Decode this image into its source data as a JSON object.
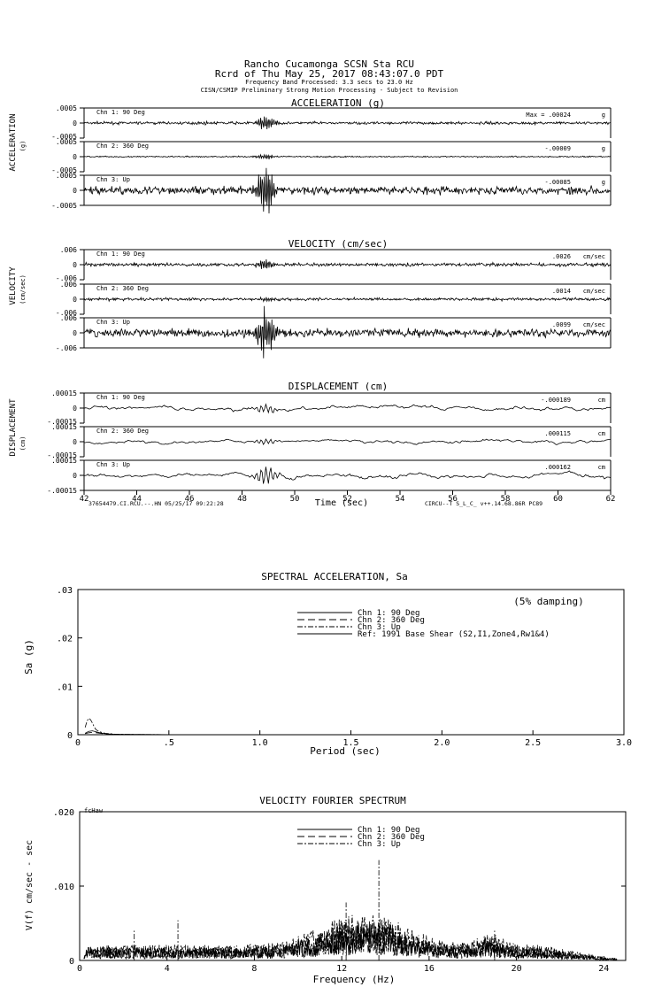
{
  "header": {
    "line1": "Rancho Cucamonga     SCSN Sta RCU",
    "line2": "Rcrd of Thu May 25, 2017 08:43:07.0 PDT",
    "line3": "Frequency Band Processed: 3.3 secs to 23.0 Hz",
    "line4": "CISN/CSMIP Preliminary Strong Motion Processing - Subject to Revision"
  },
  "time_axis": {
    "ticks": [
      "42",
      "44",
      "46",
      "48",
      "50",
      "52",
      "54",
      "56",
      "58",
      "60",
      "62"
    ],
    "label": "Time (sec)",
    "footer_left": "37654479.CI.RCU.--.HN 05/25/17 09:22:28",
    "footer_right": "CIRCU--T  S_L_C_  v++.14.68.86R PC89"
  },
  "chart_data": [
    {
      "type": "line",
      "title": "ACCELERATION (g)",
      "ylabel": "ACCELERATION",
      "yunit": "(g)",
      "xlim": [
        42,
        62
      ],
      "channels": [
        {
          "label": "Chn 1: 90 Deg",
          "max_text": "Max =   .00024",
          "unit": "g",
          "ytop": ".0005",
          "yzero": "0",
          "ybot": "-.0005",
          "peak": 0.00024,
          "burst_amp": 0.00024,
          "noise_amp": 4e-05
        },
        {
          "label": "Chn 2: 360 Deg",
          "max_text": "-.00009",
          "unit": "g",
          "ytop": ".0005",
          "yzero": "0",
          "ybot": "-.0005",
          "peak": 9e-05,
          "burst_amp": 9e-05,
          "noise_amp": 2e-05
        },
        {
          "label": "Chn 3: Up",
          "max_text": "-.00085",
          "unit": "g",
          "ytop": ".0005",
          "yzero": "0",
          "ybot": "-.0005",
          "peak": 0.00085,
          "burst_amp": 0.00085,
          "noise_amp": 0.00012
        }
      ]
    },
    {
      "type": "line",
      "title": "VELOCITY (cm/sec)",
      "ylabel": "VELOCITY",
      "yunit": "(cm/sec)",
      "xlim": [
        42,
        62
      ],
      "channels": [
        {
          "label": "Chn 1: 90 Deg",
          "max_text": ".0026",
          "unit": "cm/sec",
          "ytop": ".006",
          "yzero": "0",
          "ybot": "-.006",
          "peak": 0.0026,
          "burst_amp": 0.0026,
          "noise_amp": 0.0006
        },
        {
          "label": "Chn 2: 360 Deg",
          "max_text": ".0014",
          "unit": "cm/sec",
          "ytop": ".006",
          "yzero": "0",
          "ybot": "-.006",
          "peak": 0.0014,
          "burst_amp": 0.0008,
          "noise_amp": 0.0005
        },
        {
          "label": "Chn 3: Up",
          "max_text": ".0099",
          "unit": "cm/sec",
          "ytop": ".006",
          "yzero": "0",
          "ybot": "-.006",
          "peak": 0.0099,
          "burst_amp": 0.0099,
          "noise_amp": 0.0015
        }
      ]
    },
    {
      "type": "line",
      "title": "DISPLACEMENT (cm)",
      "ylabel": "DISPLACEMENT",
      "yunit": "(cm)",
      "xlim": [
        42,
        62
      ],
      "xlabel": "Time (sec)",
      "channels": [
        {
          "label": "Chn 1: 90 Deg",
          "max_text": "-.000189",
          "unit": "cm",
          "ytop": ".00015",
          "yzero": "0",
          "ybot": "-.00015",
          "peak": 0.000189,
          "burst_amp": 4e-05,
          "noise_amp": 6e-05
        },
        {
          "label": "Chn 2: 360 Deg",
          "max_text": ".000115",
          "unit": "cm",
          "ytop": ".00015",
          "yzero": "0",
          "ybot": "-.00015",
          "peak": 0.000115,
          "burst_amp": 3e-05,
          "noise_amp": 5e-05
        },
        {
          "label": "Chn 3: Up",
          "max_text": ".000162",
          "unit": "cm",
          "ytop": ".00015",
          "yzero": "0",
          "ybot": "-.00015",
          "peak": 0.000162,
          "burst_amp": 9e-05,
          "noise_amp": 6e-05
        }
      ]
    },
    {
      "type": "line",
      "title": "SPECTRAL ACCELERATION, Sa",
      "xlabel": "Period (sec)",
      "ylabel": "Sa (g)",
      "annotation": "(5% damping)",
      "xlim": [
        0,
        3.0
      ],
      "ylim": [
        0,
        0.03
      ],
      "xticks": [
        "0",
        ".5",
        "1.0",
        "1.5",
        "2.0",
        "2.5",
        "3.0"
      ],
      "yticks": [
        "0",
        ".01",
        ".02",
        ".03"
      ],
      "series": [
        {
          "name": "Chn 1: 90 Deg",
          "dash": "",
          "x": [
            0.04,
            0.06,
            0.08,
            0.1,
            0.12,
            0.15,
            0.2,
            0.3,
            0.5,
            1.0,
            3.0
          ],
          "y": [
            0.0003,
            0.0007,
            0.0008,
            0.0006,
            0.0004,
            0.0002,
            0.0001,
            5e-05,
            2e-05,
            1e-05,
            0
          ]
        },
        {
          "name": "Chn 2: 360 Deg",
          "dash": "8,4",
          "x": [
            0.04,
            0.06,
            0.08,
            0.1,
            0.12,
            0.15,
            0.2,
            0.3,
            0.5,
            1.0,
            3.0
          ],
          "y": [
            0.0002,
            0.0004,
            0.0005,
            0.0004,
            0.0003,
            0.00015,
            8e-05,
            4e-05,
            2e-05,
            1e-05,
            0
          ]
        },
        {
          "name": "Chn 3: Up",
          "dash": "6,2,2,2",
          "x": [
            0.04,
            0.05,
            0.06,
            0.07,
            0.08,
            0.09,
            0.1,
            0.12,
            0.15,
            0.2,
            0.3,
            0.5,
            1.0,
            3.0
          ],
          "y": [
            0.0015,
            0.0028,
            0.0034,
            0.0031,
            0.0024,
            0.0016,
            0.001,
            0.0006,
            0.0003,
            0.00015,
            6e-05,
            2e-05,
            1e-05,
            0
          ]
        },
        {
          "name": "Ref: 1991 Base Shear (S2,I1,Zone4,Rw1&4)",
          "dash": "",
          "x": [],
          "y": []
        }
      ]
    },
    {
      "type": "line",
      "title": "VELOCITY FOURIER SPECTRUM",
      "xlabel": "Frequency (Hz)",
      "ylabel": "V(f)  cm/sec - sec",
      "corner_tag": "fcHaw",
      "xlim": [
        0,
        25
      ],
      "ylim": [
        0,
        0.02
      ],
      "xticks": [
        "0",
        "4",
        "8",
        "12",
        "16",
        "20",
        "24"
      ],
      "yticks": [
        "0",
        ".010",
        ".020"
      ],
      "series": [
        {
          "name": "Chn 1: 90 Deg",
          "dash": ""
        },
        {
          "name": "Chn 2: 360 Deg",
          "dash": "8,4"
        },
        {
          "name": "Chn 3: Up",
          "dash": "6,2,2,2"
        }
      ],
      "peaks": [
        {
          "x": 13.7,
          "y": 0.0135
        },
        {
          "x": 12.2,
          "y": 0.0078
        },
        {
          "x": 4.5,
          "y": 0.0054
        },
        {
          "x": 2.5,
          "y": 0.004
        },
        {
          "x": 19.0,
          "y": 0.004
        }
      ]
    }
  ]
}
